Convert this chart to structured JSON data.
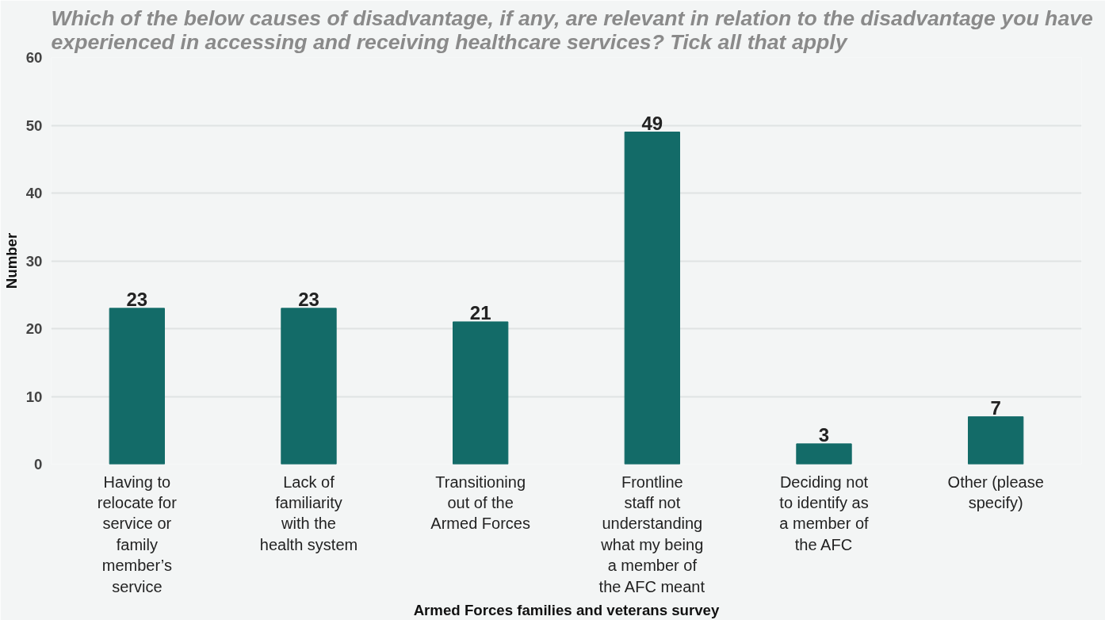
{
  "chart_data": {
    "type": "bar",
    "title": "Which of the below causes of disadvantage, if any, are relevant in relation to the disadvantage you have experienced in accessing and receiving healthcare services? Tick all that apply",
    "xlabel": "Armed Forces families and veterans survey",
    "ylabel": "Number",
    "categories": [
      "Having to relocate for service or family member’s service",
      "Lack of familiarity with the health system",
      "Transitioning out of the Armed Forces",
      "Frontline staff not understanding what my being a member of the AFC meant",
      "Deciding not to identify as a member of the AFC",
      "Other (please specify)"
    ],
    "values": [
      23,
      23,
      21,
      49,
      3,
      7
    ],
    "color": "#136b68",
    "data_labels": true,
    "ylim": [
      0,
      60
    ],
    "yticks": [
      0,
      10,
      20,
      30,
      40,
      50,
      60
    ],
    "grid": "y"
  }
}
